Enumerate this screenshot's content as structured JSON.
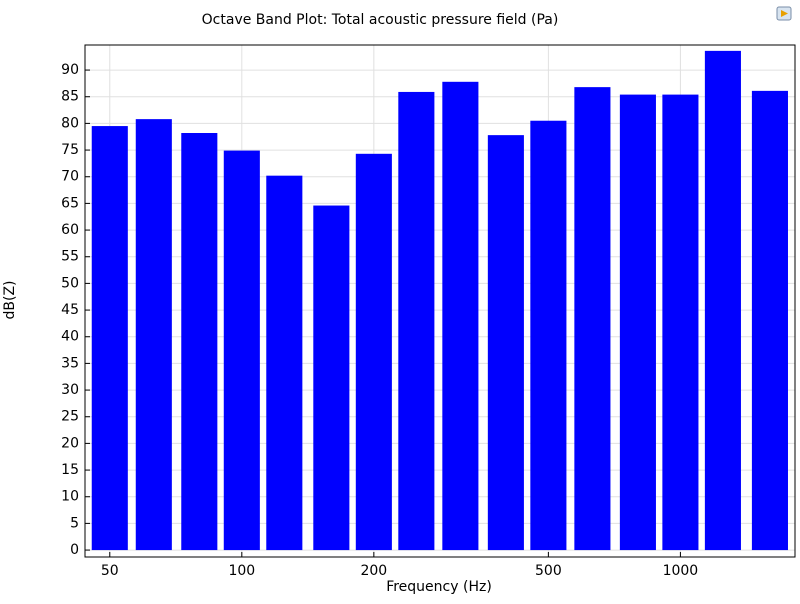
{
  "chart_data": {
    "type": "bar",
    "title": "Octave Band Plot: Total acoustic pressure field (Pa)",
    "xlabel": "Frequency (Hz)",
    "ylabel": "dB(Z)",
    "x": [
      50,
      63,
      80,
      100,
      125,
      160,
      200,
      250,
      315,
      400,
      500,
      630,
      800,
      1000,
      1250,
      1600
    ],
    "values": [
      79.5,
      80.8,
      78.2,
      74.9,
      70.2,
      64.6,
      74.3,
      85.9,
      87.8,
      77.8,
      80.5,
      86.8,
      85.4,
      85.4,
      93.6,
      86.1
    ],
    "color": "#0000ff",
    "xscale": "log",
    "xlim": [
      43.9,
      1825
    ],
    "xticks": [
      50,
      100,
      200,
      500,
      1000
    ],
    "ylim": [
      -1.3,
      94.7
    ],
    "yticks": [
      0,
      5,
      10,
      15,
      20,
      25,
      30,
      35,
      40,
      45,
      50,
      55,
      60,
      65,
      70,
      75,
      80,
      85,
      90
    ],
    "grid": true
  }
}
